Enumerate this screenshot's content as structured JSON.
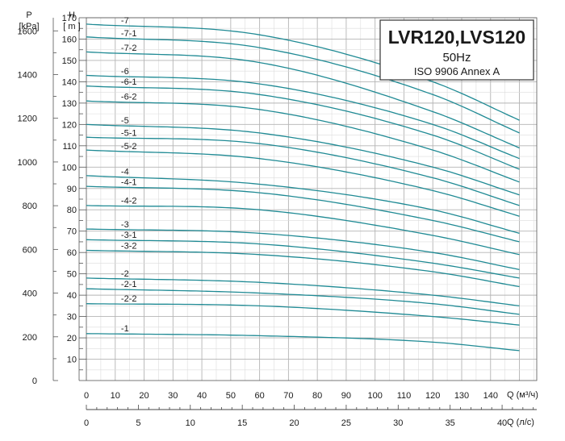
{
  "chart_data": {
    "type": "line",
    "title": "LVR120,LVS120",
    "subtitle": "50Hz",
    "standard": "ISO 9906  Annex A",
    "y_left_label": "H",
    "y_left_unit": "[ m ]",
    "y_pressure_label": "P",
    "y_pressure_unit": "[kPa]",
    "x_label": "Q (м³/ч)",
    "x2_label": "Q (л/с)",
    "xlim": [
      0,
      156
    ],
    "ylim": [
      0,
      170
    ],
    "plim": [
      0,
      1660
    ],
    "x_ticks": [
      0,
      10,
      20,
      30,
      40,
      50,
      60,
      70,
      80,
      90,
      100,
      110,
      120,
      130,
      140
    ],
    "x_tick_labels": [
      "0",
      "10",
      "20",
      "30",
      "40",
      "50",
      "60",
      "70",
      "80",
      "90",
      "100",
      "110",
      "120",
      "130",
      "140"
    ],
    "y_ticks": [
      10,
      20,
      30,
      40,
      50,
      60,
      70,
      80,
      90,
      100,
      110,
      120,
      130,
      140,
      150,
      160,
      170
    ],
    "y_tick_labels": [
      "10",
      "20",
      "30",
      "40",
      "50",
      "60",
      "70",
      "80",
      "90",
      "100",
      "110",
      "120",
      "130",
      "140",
      "150",
      "160",
      "170"
    ],
    "p_ticks": [
      0,
      200,
      400,
      600,
      800,
      1000,
      1200,
      1400,
      1600
    ],
    "p_tick_labels": [
      "0",
      "200",
      "400",
      "600",
      "800",
      "1000",
      "1200",
      "1400",
      "1600"
    ],
    "x2_ticks": [
      0,
      5,
      10,
      15,
      20,
      25,
      30,
      35,
      40
    ],
    "x2_tick_labels": [
      "0",
      "5",
      "10",
      "15",
      "20",
      "25",
      "30",
      "35",
      "40"
    ],
    "line_color": "#1f8a94",
    "q_points": [
      0,
      60,
      120,
      150
    ],
    "series": [
      {
        "name": "-7",
        "values": [
          167,
          162,
          140,
          122
        ]
      },
      {
        "name": "-7-1",
        "values": [
          161,
          156,
          134,
          116
        ]
      },
      {
        "name": "-7-2",
        "values": [
          154,
          149,
          126,
          109
        ]
      },
      {
        "name": "-6",
        "values": [
          143,
          139,
          120,
          104
        ]
      },
      {
        "name": "-6-1",
        "values": [
          138,
          134,
          115,
          99
        ]
      },
      {
        "name": "-6-2",
        "values": [
          131,
          127,
          108,
          93
        ]
      },
      {
        "name": "-5",
        "values": [
          120,
          116,
          100,
          87
        ]
      },
      {
        "name": "-5-1",
        "values": [
          114,
          111,
          95,
          82
        ]
      },
      {
        "name": "-5-2",
        "values": [
          108,
          104,
          89,
          77
        ]
      },
      {
        "name": "-4",
        "values": [
          96,
          92,
          80,
          69
        ]
      },
      {
        "name": "-4-1",
        "values": [
          91,
          88,
          75,
          65
        ]
      },
      {
        "name": "-4-2",
        "values": [
          82,
          80,
          68,
          59
        ]
      },
      {
        "name": "-3",
        "values": [
          71,
          69,
          60,
          52
        ]
      },
      {
        "name": "-3-1",
        "values": [
          66,
          64,
          55,
          48
        ]
      },
      {
        "name": "-3-2",
        "values": [
          61,
          59,
          51,
          44
        ]
      },
      {
        "name": "-2",
        "values": [
          48,
          46,
          40,
          35
        ]
      },
      {
        "name": "-2-1",
        "values": [
          43,
          41,
          36,
          31
        ]
      },
      {
        "name": "-2-2",
        "values": [
          36,
          35,
          30,
          26
        ]
      },
      {
        "name": "-1",
        "values": [
          22,
          21,
          18,
          14
        ]
      }
    ]
  }
}
